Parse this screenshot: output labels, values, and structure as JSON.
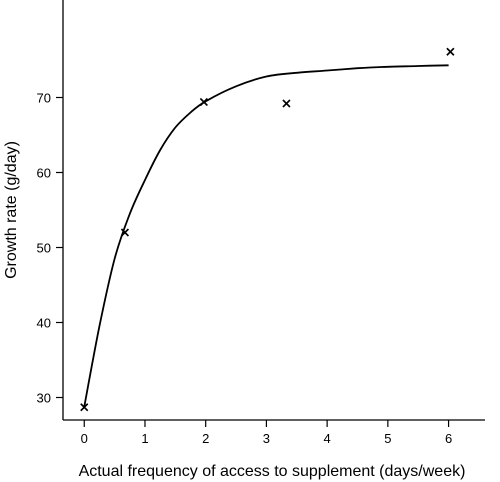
{
  "chart_data": {
    "type": "scatter",
    "title": "",
    "xlabel": "Actual frequency of access to supplement (days/week)",
    "ylabel": "Growth rate (g/day)",
    "xlim": [
      -0.35,
      6.6
    ],
    "ylim": [
      27,
      83
    ],
    "xticks": [
      0,
      1,
      2,
      3,
      4,
      5,
      6
    ],
    "yticks": [
      30,
      40,
      50,
      60,
      70
    ],
    "grid": false,
    "legend": "none",
    "series": [
      {
        "marker": "x",
        "x": [
          0,
          0.67,
          1.97,
          3.33,
          6.03
        ],
        "y": [
          28.7,
          52,
          69.4,
          69.2,
          76.1
        ]
      }
    ],
    "fitted_curve": {
      "x": [
        0,
        0.25,
        0.5,
        0.75,
        1,
        1.25,
        1.5,
        1.75,
        2,
        2.5,
        3,
        3.5,
        4,
        4.5,
        5,
        5.5,
        6
      ],
      "y": [
        28.8,
        39.5,
        48.5,
        54.5,
        59,
        63,
        66,
        68,
        69.5,
        71.5,
        72.8,
        73.3,
        73.6,
        73.9,
        74.1,
        74.2,
        74.3
      ]
    }
  }
}
